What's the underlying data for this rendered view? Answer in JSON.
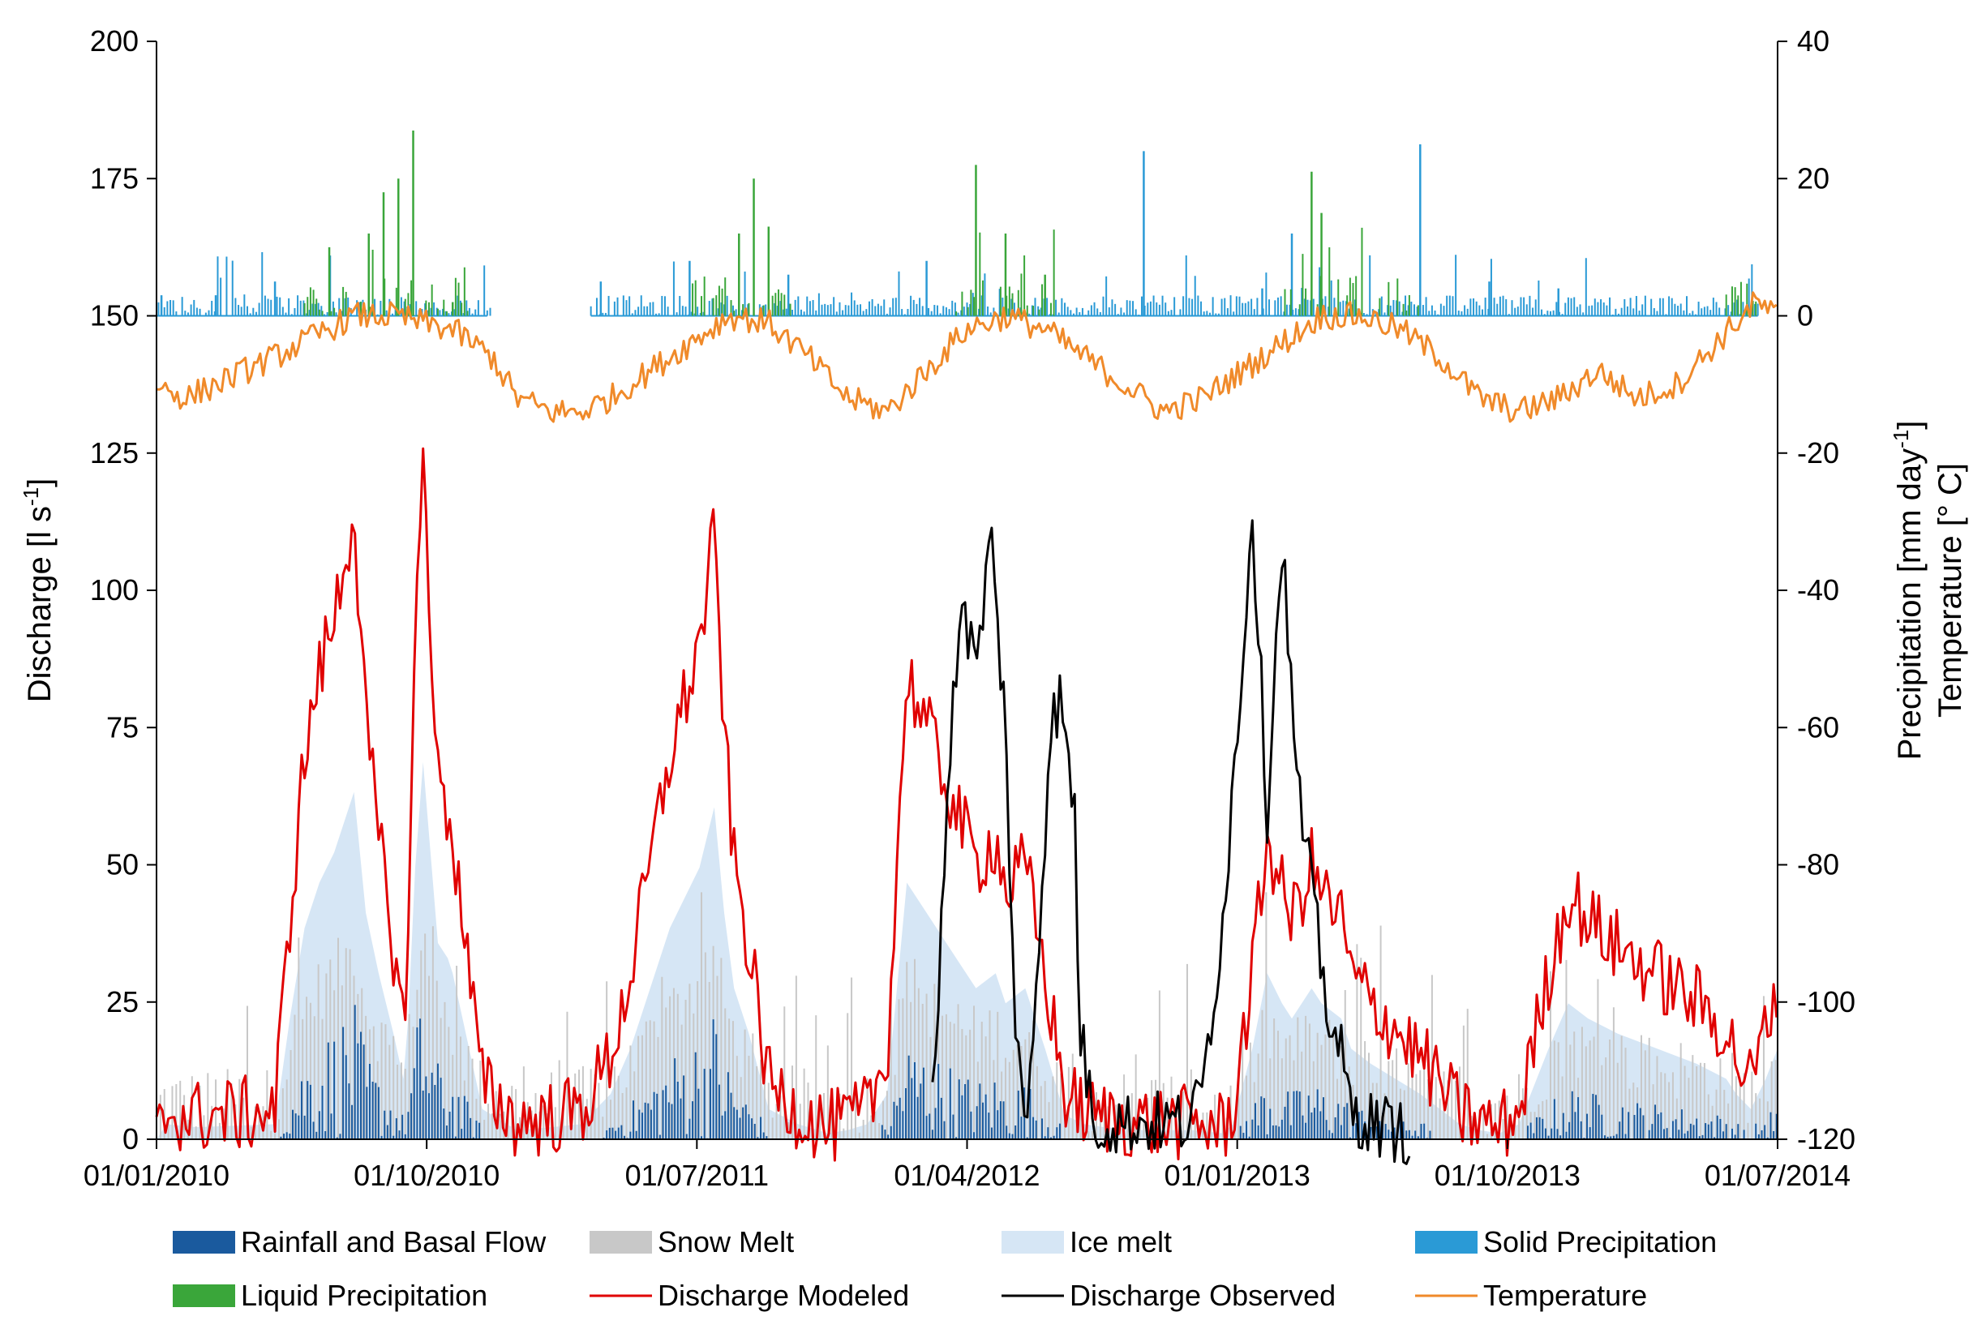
{
  "chart_data": {
    "type": "line",
    "title": "",
    "xlabel": "",
    "ylabel_left": "Discharge [l s-1]",
    "ylabel_left_parts": {
      "base": "Discharge [l s",
      "sup": "-1",
      "tail": "]"
    },
    "ylabel_right_line1_parts": {
      "base": "Precipitation [mm day",
      "sup": "-1",
      "tail": "]"
    },
    "ylabel_right_line2": "Temperature [° C]",
    "x_ticks": [
      "01/01/2010",
      "01/10/2010",
      "01/07/2011",
      "01/04/2012",
      "01/01/2013",
      "01/10/2013",
      "01/07/2014"
    ],
    "x_range_days": [
      0,
      1642
    ],
    "y_left_range": [
      0,
      200
    ],
    "y_left_ticks": [
      "0",
      "25",
      "50",
      "75",
      "100",
      "125",
      "150",
      "175",
      "200"
    ],
    "y_right_range": [
      -120,
      40
    ],
    "y_right_ticks": [
      "-120",
      "-100",
      "-80",
      "-60",
      "-40",
      "-20",
      "0",
      "20",
      "40"
    ],
    "colors": {
      "rain": "#1a5a9e",
      "snow": "#c8c8c8",
      "ice": "#d6e6f5",
      "solid": "#2a9ad6",
      "liquid": "#3aa63a",
      "modeled": "#e00000",
      "observed": "#000000",
      "temperature": "#f08a2a"
    },
    "legend": [
      {
        "key": "rain",
        "label": "Rainfall and Basal Flow",
        "kind": "bar"
      },
      {
        "key": "snow",
        "label": "Snow Melt",
        "kind": "bar"
      },
      {
        "key": "ice",
        "label": "Ice melt",
        "kind": "bar"
      },
      {
        "key": "solid",
        "label": "Solid Precipitation",
        "kind": "bar"
      },
      {
        "key": "liquid",
        "label": "Liquid Precipitation",
        "kind": "bar"
      },
      {
        "key": "modeled",
        "label": "Discharge Modeled",
        "kind": "line"
      },
      {
        "key": "observed",
        "label": "Discharge Observed",
        "kind": "line"
      },
      {
        "key": "temperature",
        "label": "Temperature",
        "kind": "line"
      }
    ],
    "series": {
      "discharge_modeled_lps": {
        "x_days": [
          0,
          10,
          40,
          120,
          135,
          150,
          165,
          180,
          200,
          212,
          225,
          240,
          250,
          255,
          262,
          270,
          285,
          295,
          300,
          310,
          330,
          365,
          400,
          430,
          460,
          480,
          520,
          550,
          565,
          575,
          585,
          600,
          620,
          650,
          680,
          700,
          720,
          740,
          760,
          790,
          810,
          830,
          850,
          860,
          880,
          900,
          920,
          940,
          960,
          1000,
          1050,
          1080,
          1090,
          1110,
          1125,
          1140,
          1150,
          1170,
          1180,
          1200,
          1210,
          1230,
          1280,
          1320,
          1340,
          1360,
          1380,
          1410,
          1430,
          1450,
          1480,
          1560,
          1590,
          1600,
          1615,
          1630,
          1642
        ],
        "y": [
          0,
          5,
          4,
          5,
          40,
          70,
          85,
          95,
          115,
          75,
          55,
          35,
          20,
          40,
          90,
          125,
          65,
          60,
          55,
          40,
          10,
          3,
          4,
          5,
          15,
          30,
          70,
          90,
          110,
          75,
          50,
          35,
          10,
          5,
          2,
          3,
          5,
          15,
          85,
          70,
          60,
          50,
          55,
          45,
          50,
          30,
          8,
          5,
          4,
          3,
          3,
          2,
          5,
          30,
          55,
          45,
          40,
          50,
          45,
          40,
          30,
          25,
          15,
          5,
          3,
          2,
          5,
          30,
          45,
          40,
          35,
          25,
          20,
          15,
          10,
          20,
          30
        ]
      },
      "discharge_observed_lps": {
        "x_days": [
          786,
          800,
          815,
          830,
          845,
          860,
          870,
          880,
          895,
          905,
          915,
          930,
          935,
          950,
          990,
          1040,
          1050,
          1060,
          1080,
          1095,
          1110,
          1125,
          1140,
          1155,
          1170,
          1185,
          1200,
          1210,
          1230,
          1250,
          1270
        ],
        "y": [
          5,
          60,
          100,
          85,
          110,
          75,
          20,
          0,
          40,
          75,
          80,
          60,
          20,
          3,
          3,
          3,
          4,
          10,
          40,
          75,
          115,
          60,
          110,
          65,
          45,
          25,
          15,
          5,
          3,
          2,
          1
        ]
      },
      "temperature_degC": {
        "x_days": [
          0,
          30,
          60,
          120,
          200,
          240,
          270,
          300,
          340,
          365,
          400,
          430,
          460,
          520,
          580,
          620,
          660,
          700,
          740,
          780,
          820,
          860,
          900,
          940,
          980,
          1020,
          1060,
          1100,
          1140,
          1180,
          1220,
          1260,
          1300,
          1340,
          1380,
          1420,
          1460,
          1500,
          1540,
          1580,
          1620,
          1642
        ],
        "y": [
          -10,
          -12,
          -10,
          -6,
          0,
          0,
          -1,
          -2,
          -6,
          -12,
          -14,
          -14,
          -12,
          -6,
          0,
          -1,
          -6,
          -12,
          -14,
          -8,
          -2,
          0,
          -2,
          -6,
          -10,
          -14,
          -12,
          -8,
          -4,
          0,
          0,
          -2,
          -6,
          -12,
          -14,
          -12,
          -8,
          -12,
          -10,
          -4,
          2,
          0
        ]
      },
      "precipitation_peaks_mm_day": {
        "x_days": [
          5,
          60,
          120,
          175,
          215,
          230,
          245,
          260,
          300,
          450,
          540,
          590,
          605,
          620,
          640,
          780,
          830,
          860,
          900,
          1000,
          1120,
          1150,
          1170,
          1180,
          1280,
          1350,
          1420
        ],
        "y": [
          3,
          3,
          5,
          10,
          12,
          18,
          20,
          27,
          2,
          5,
          8,
          12,
          20,
          13,
          6,
          8,
          22,
          12,
          6,
          24,
          4,
          12,
          21,
          15,
          25,
          5,
          4
        ]
      }
    }
  }
}
